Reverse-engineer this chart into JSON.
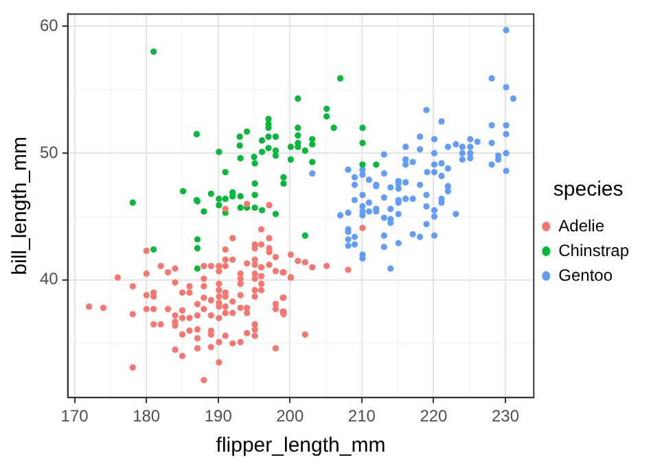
{
  "chart_data": {
    "type": "scatter",
    "xlabel": "flipper_length_mm",
    "ylabel": "bill_length_mm",
    "legend_title": "species",
    "legend": "right",
    "grid": true,
    "marker": "circle",
    "xlim": [
      169.05,
      233.95
    ],
    "ylim": [
      30.725,
      60.975
    ],
    "xticks": [
      170,
      {
        "value": 175,
        "label": null
      },
      180,
      {
        "value": 185,
        "label": null
      },
      190,
      {
        "value": 195,
        "label": null
      },
      200,
      {
        "value": 205,
        "label": null
      },
      210,
      {
        "value": 215,
        "label": null
      },
      220,
      {
        "value": 225,
        "label": null
      },
      230
    ],
    "yticks": [
      {
        "value": 35,
        "label": null
      },
      40,
      {
        "value": 45,
        "label": null
      },
      50,
      {
        "value": 55,
        "label": null
      },
      60
    ],
    "series": [
      {
        "name": "Adelie",
        "color": "#f8766d",
        "x": [
          194.0,
          191.0,
          197.1,
          196.0,
          192.0,
          195.1,
          196.0,
          195.1,
          197.1,
          197.1,
          197.1,
          191.0,
          198.0,
          180.0,
          182.0,
          183.0,
          184.0,
          188.0,
          189.0,
          190.1,
          191.0,
          192.0,
          190.1,
          191.0,
          194.0,
          195.1,
          195.1,
          196.0,
          197.1,
          180.0,
          176.0,
          184.0,
          186.0,
          188.0,
          188.0,
          190.1,
          190.1,
          191.0,
          191.0,
          193.1,
          193.1,
          193.1,
          195.1,
          195.1,
          196.0,
          196.0,
          198.0,
          199.0,
          200.1,
          195.1,
          196.0,
          178.1,
          180.0,
          181.0,
          181.0,
          185.0,
          186.0,
          187.1,
          188.0,
          189.0,
          190.1,
          190.1,
          190.1,
          191.0,
          192.0,
          193.1,
          194.0,
          195.1,
          198.0,
          198.0,
          199.0,
          199.0,
          172.0,
          174.0,
          178.1,
          180.0,
          181.0,
          183.0,
          184.0,
          185.0,
          186.0,
          187.1,
          188.0,
          189.0,
          190.1,
          191.0,
          192.0,
          193.1,
          194.0,
          195.1,
          195.1,
          195.1,
          181.0,
          182.0,
          184.0,
          184.0,
          185.0,
          185.0,
          186.0,
          187.1,
          187.1,
          189.0,
          189.0,
          190.1,
          191.0,
          192.0,
          193.1,
          194.0,
          198.0,
          184.0,
          185.0,
          187.1,
          189.0,
          178.1,
          190.1,
          188.0,
          210.1,
          200.1,
          201.1,
          202.1,
          203.1,
          205.1,
          208.1,
          199.1,
          200.1,
          199.1,
          199.1,
          199.1,
          202.1
        ],
        "values": [
          46.0,
          45.6,
          45.9,
          44.0,
          43.3,
          42.8,
          42.8,
          42.5,
          43.3,
          42.5,
          42.2,
          42.4,
          41.8,
          42.3,
          41.1,
          40.6,
          40.9,
          41.1,
          41.1,
          41.1,
          41.6,
          41.6,
          40.7,
          41.1,
          41.3,
          41.6,
          41.2,
          41.0,
          41.2,
          40.5,
          40.2,
          39.8,
          39.5,
          40.1,
          39.5,
          39.7,
          39.2,
          39.0,
          38.7,
          40.5,
          40.1,
          39.7,
          40.5,
          40.1,
          40.3,
          39.2,
          40.7,
          40.6,
          40.2,
          39.2,
          39.7,
          39.5,
          38.8,
          39.0,
          38.7,
          39.0,
          39.0,
          38.1,
          38.6,
          38.4,
          38.7,
          38.2,
          37.9,
          37.9,
          38.3,
          38.8,
          37.8,
          38.7,
          38.1,
          37.7,
          37.5,
          38.6,
          37.9,
          37.8,
          37.3,
          37.7,
          37.7,
          37.7,
          37.2,
          37.6,
          37.0,
          37.2,
          37.7,
          37.2,
          37.0,
          37.4,
          37.4,
          37.8,
          37.4,
          36.5,
          36.1,
          35.6,
          36.5,
          36.5,
          36.7,
          36.4,
          37.0,
          35.7,
          36.0,
          36.1,
          35.4,
          36.0,
          35.7,
          35.1,
          35.6,
          35.0,
          35.1,
          35.8,
          34.6,
          34.5,
          34.0,
          34.6,
          34.7,
          33.1,
          33.5,
          32.1,
          44.1,
          42.0,
          41.5,
          41.4,
          41.0,
          41.1,
          40.8,
          40.6,
          40.2,
          38.6,
          37.5,
          37.3,
          35.7
        ]
      },
      {
        "name": "Chinstrap",
        "color": "#00ba38",
        "x": [
          181.0,
          187.0,
          190.1,
          193.0,
          194.0,
          193.0,
          193.1,
          191.0,
          195.0,
          195.1,
          196.1,
          197.0,
          197.0,
          197.0,
          197.0,
          198.0,
          197.0,
          198.0,
          198.0,
          196.1,
          200.1,
          200.1,
          199.1,
          199.1,
          195.1,
          195.1,
          185.1,
          189.0,
          190.1,
          191.0,
          192.0,
          192.0,
          193.1,
          187.0,
          178.1,
          207.0,
          201.1,
          205.1,
          205.1,
          206.1,
          201.1,
          201.1,
          201.1,
          201.1,
          202.1,
          203.1,
          203.1,
          203.1,
          210.1,
          210.1,
          210.1,
          212.0,
          181.0,
          187.1,
          187.1,
          187.1,
          187.1,
          188.0,
          190.1,
          191.0,
          193.1,
          194.0,
          195.1,
          196.1,
          198.0,
          202.1
        ],
        "values": [
          58.0,
          51.5,
          50.1,
          51.3,
          51.7,
          50.6,
          49.6,
          48.5,
          49.7,
          49.2,
          51.0,
          52.7,
          52.3,
          52.0,
          51.3,
          51.3,
          50.4,
          50.2,
          49.8,
          50.1,
          50.5,
          49.5,
          48.1,
          47.6,
          47.6,
          46.7,
          47.0,
          46.8,
          46.4,
          46.4,
          46.6,
          46.9,
          46.6,
          46.3,
          46.1,
          55.9,
          54.3,
          53.5,
          52.9,
          52.0,
          52.0,
          51.4,
          50.8,
          50.5,
          50.2,
          51.1,
          50.7,
          49.3,
          52.0,
          50.8,
          49.1,
          49.1,
          42.4,
          43.2,
          42.5,
          40.9,
          46.2,
          45.4,
          45.9,
          45.3,
          45.7,
          45.7,
          45.7,
          45.5,
          45.2,
          43.5
        ]
      },
      {
        "name": "Gentoo",
        "color": "#619cff",
        "x": [
          230.1,
          228.1,
          230.1,
          231.1,
          219.0,
          221.1,
          228.1,
          230.1,
          230.1,
          218.1,
          220.1,
          225.1,
          226.1,
          228.1,
          223.1,
          222.0,
          224.0,
          225.1,
          224.0,
          225.1,
          224.0,
          225.1,
          218.1,
          220.1,
          216.1,
          213.1,
          216.1,
          216.1,
          217.1,
          221.1,
          220.1,
          222.0,
          229.0,
          229.0,
          230.1,
          230.1,
          228.1,
          203.1,
          208.1,
          210.1,
          210.1,
          209.0,
          209.0,
          213.1,
          211.0,
          212.0,
          212.0,
          214.0,
          215.1,
          215.1,
          215.1,
          216.1,
          219.1,
          220.1,
          221.1,
          218.1,
          222.0,
          222.0,
          219.0,
          209.0,
          210.1,
          211.0,
          213.1,
          215.1,
          216.1,
          217.1,
          221.1,
          221.1,
          215.1,
          219.0,
          220.1,
          220.1,
          207.0,
          208.1,
          210.1,
          210.1,
          210.1,
          211.0,
          212.0,
          212.0,
          213.1,
          214.0,
          214.0,
          215.1,
          223.1,
          219.0,
          214.0,
          208.1,
          208.1,
          208.1,
          208.1,
          209.0,
          209.0,
          213.1,
          213.1,
          215.1,
          217.1,
          218.1,
          220.1,
          210.1,
          210.1,
          214.0
        ],
        "values": [
          59.7,
          55.9,
          55.2,
          54.3,
          53.4,
          52.5,
          52.2,
          52.2,
          51.5,
          51.3,
          51.1,
          51.1,
          50.9,
          50.8,
          50.7,
          50.5,
          50.5,
          50.5,
          50.0,
          50.0,
          49.5,
          49.6,
          50.3,
          50.0,
          50.5,
          49.9,
          49.5,
          49.1,
          49.3,
          49.2,
          49.1,
          48.8,
          49.8,
          49.5,
          50.0,
          48.6,
          49.1,
          48.4,
          48.7,
          48.7,
          48.3,
          48.1,
          47.5,
          48.4,
          47.9,
          47.5,
          47.4,
          47.3,
          47.8,
          47.6,
          47.2,
          47.7,
          48.5,
          48.5,
          48.2,
          47.5,
          47.4,
          47.0,
          46.7,
          46.3,
          46.7,
          46.1,
          46.5,
          46.3,
          46.4,
          46.4,
          46.4,
          46.1,
          46.1,
          45.8,
          45.5,
          45.0,
          45.1,
          45.3,
          45.8,
          45.4,
          45.1,
          45.4,
          45.6,
          45.4,
          44.9,
          44.8,
          45.6,
          45.2,
          45.2,
          44.4,
          44.5,
          44.0,
          43.8,
          43.2,
          42.7,
          43.4,
          42.8,
          43.5,
          42.6,
          42.9,
          43.6,
          43.4,
          43.5,
          42.0,
          41.7,
          40.9
        ]
      }
    ]
  }
}
